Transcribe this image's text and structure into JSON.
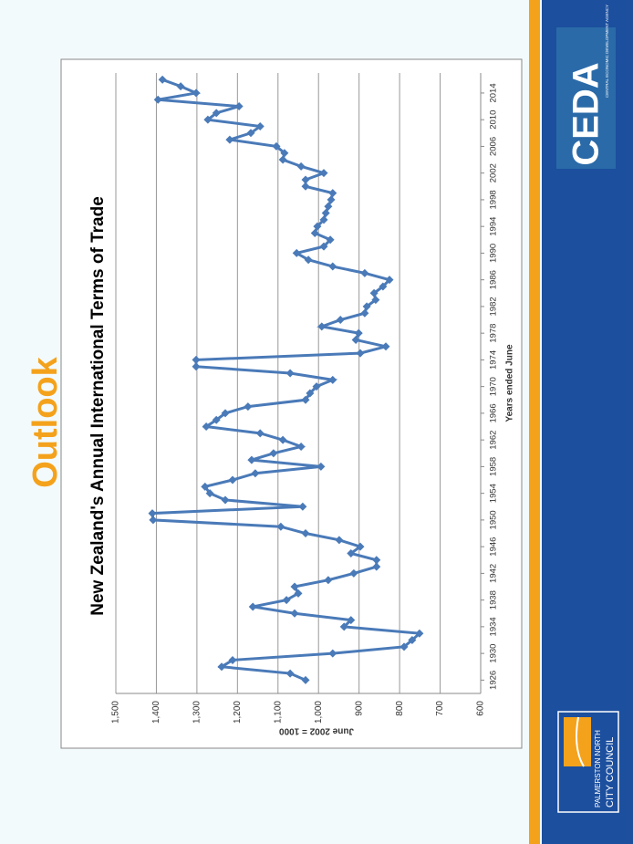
{
  "slide_title": "Outlook",
  "logos": {
    "ceda": "CEDA",
    "ceda_sub": "CENTRAL ECONOMIC DEVELOPMENT AGENCY",
    "council_1": "PALMERSTON NORTH",
    "council_2": "CITY COUNCIL"
  },
  "chart_data": {
    "type": "line",
    "title": "New Zealand's Annual International Terms of Trade",
    "y_label": "June 2002 = 1000",
    "x_label": "Years ended June",
    "color": "#4a7ab8",
    "grid": true,
    "x": [
      1926,
      1927,
      1928,
      1929,
      1930,
      1931,
      1932,
      1933,
      1934,
      1935,
      1936,
      1937,
      1938,
      1939,
      1940,
      1941,
      1942,
      1943,
      1944,
      1945,
      1946,
      1947,
      1948,
      1949,
      1950,
      1951,
      1952,
      1953,
      1954,
      1955,
      1956,
      1957,
      1958,
      1959,
      1960,
      1961,
      1962,
      1963,
      1964,
      1965,
      1966,
      1967,
      1968,
      1969,
      1970,
      1971,
      1972,
      1973,
      1974,
      1975,
      1976,
      1977,
      1978,
      1979,
      1980,
      1981,
      1982,
      1983,
      1984,
      1985,
      1986,
      1987,
      1988,
      1989,
      1990,
      1991,
      1992,
      1993,
      1994,
      1995,
      1996,
      1997,
      1998,
      1999,
      2000,
      2001,
      2002,
      2003,
      2004,
      2005,
      2006,
      2007,
      2008,
      2009,
      2010,
      2011,
      2012,
      2013,
      2014,
      2015,
      2016
    ],
    "values": [
      1032,
      1070,
      1239,
      1212,
      965,
      789,
      769,
      751,
      937,
      920,
      1059,
      1162,
      1079,
      1050,
      1059,
      976,
      913,
      857,
      857,
      920,
      897,
      949,
      1032,
      1093,
      1408,
      1410,
      1039,
      1230,
      1268,
      1280,
      1212,
      1156,
      994,
      1165,
      1111,
      1043,
      1088,
      1144,
      1277,
      1252,
      1230,
      1174,
      1032,
      1021,
      1005,
      965,
      1070,
      1302,
      1302,
      897,
      834,
      908,
      901,
      992,
      946,
      886,
      881,
      859,
      863,
      841,
      825,
      886,
      965,
      1025,
      1054,
      987,
      971,
      1009,
      1003,
      987,
      982,
      976,
      969,
      965,
      1032,
      1032,
      987,
      1043,
      1088,
      1084,
      1104,
      1219,
      1167,
      1144,
      1273,
      1252,
      1196,
      1396,
      1302,
      1340,
      1385
    ],
    "xlim": [
      1924,
      2017
    ],
    "xticks": [
      1926,
      1930,
      1934,
      1938,
      1942,
      1946,
      1950,
      1954,
      1958,
      1962,
      1966,
      1970,
      1974,
      1978,
      1982,
      1986,
      1990,
      1994,
      1998,
      2002,
      2006,
      2010,
      2014
    ],
    "ylim": [
      600,
      1500
    ],
    "yticks": [
      600,
      700,
      800,
      900,
      {
        "value": 1000,
        "label": "1,000"
      },
      {
        "value": 1100,
        "label": "1,100"
      },
      {
        "value": 1200,
        "label": "1,200"
      },
      {
        "value": 1300,
        "label": "1,300"
      },
      {
        "value": 1400,
        "label": "1,400"
      },
      {
        "value": 1500,
        "label": "1,500"
      }
    ]
  }
}
